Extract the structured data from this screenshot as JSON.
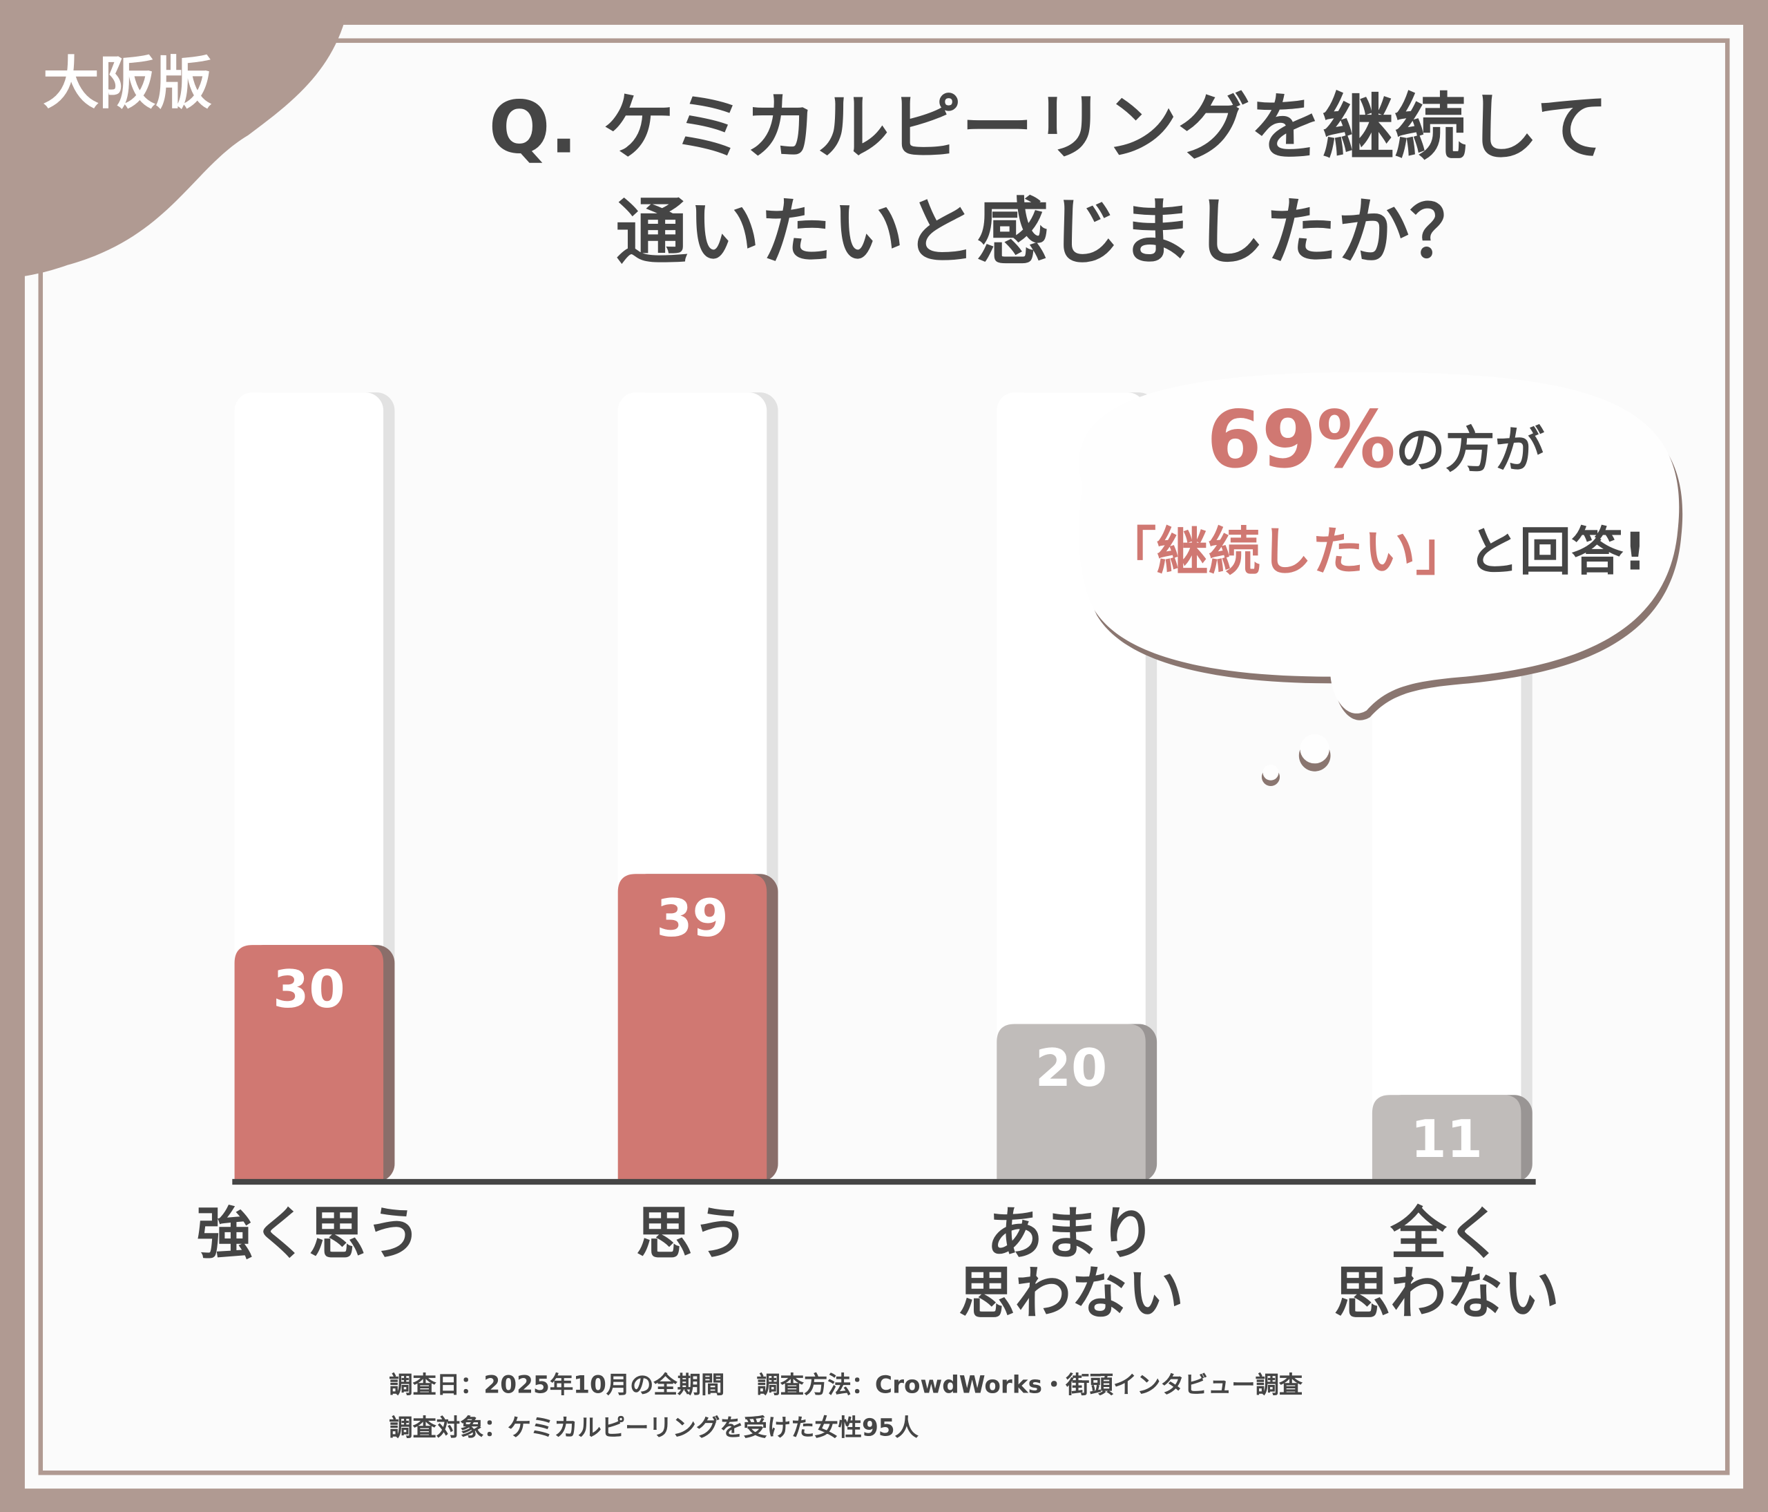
{
  "badge": "大阪版",
  "chart_data": {
    "type": "bar",
    "title": "Q. ケミカルピーリングを継続して\n通いたいと感じましたか？",
    "categories": [
      "強く思う",
      "思う",
      "あまり\n思わない",
      "全く\n思わない"
    ],
    "values": [
      30,
      39,
      20,
      11
    ],
    "colors": [
      "#d07872",
      "#d07872",
      "#c0bcba",
      "#c0bcba"
    ],
    "ylim": [
      0,
      100
    ]
  },
  "callout": {
    "highlight_1": "69%",
    "text_1": "の方が",
    "highlight_2": "「継続したい」",
    "text_2": "と回答!"
  },
  "footer": [
    "調査日：2025年10月の全期間　 調査方法：CrowdWorks・街頭インタビュー調査",
    "調査対象：ケミカルピーリングを受けた女性95人"
  ]
}
